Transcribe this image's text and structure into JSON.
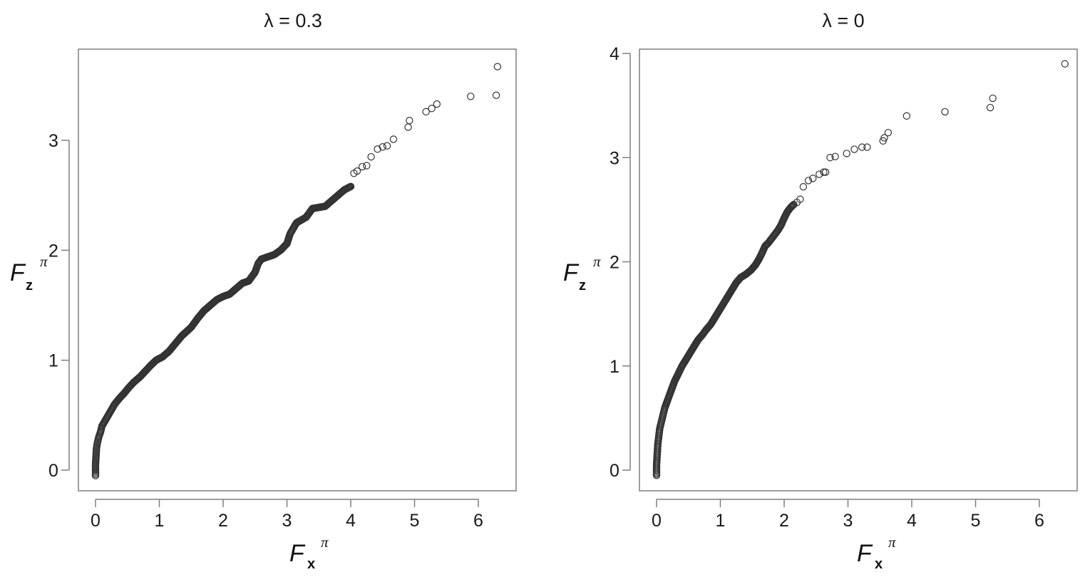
{
  "chart_data": [
    {
      "type": "scatter",
      "title": "λ = 0.3",
      "xlabel": {
        "main": "F",
        "sub": "x",
        "sup": "π"
      },
      "ylabel": {
        "main": "F",
        "sub": "z",
        "sup": "π"
      },
      "xlim": [
        -0.25,
        6.55
      ],
      "ylim": [
        -0.18,
        3.82
      ],
      "xticks": [
        0,
        1,
        2,
        3,
        4,
        5,
        6
      ],
      "yticks": [
        0,
        1,
        2,
        3
      ],
      "xtick_labels": [
        "0",
        "1",
        "2",
        "3",
        "4",
        "5",
        "6"
      ],
      "ytick_labels": [
        "0",
        "1",
        "2",
        "3"
      ],
      "grid": false,
      "curve": [
        [
          0.0,
          -0.05
        ],
        [
          0.0,
          0.0
        ],
        [
          0.0,
          0.05
        ],
        [
          0.005,
          0.1
        ],
        [
          0.01,
          0.15
        ],
        [
          0.015,
          0.2
        ],
        [
          0.03,
          0.25
        ],
        [
          0.05,
          0.3
        ],
        [
          0.08,
          0.35
        ],
        [
          0.1,
          0.4
        ],
        [
          0.15,
          0.45
        ],
        [
          0.2,
          0.5
        ],
        [
          0.25,
          0.55
        ],
        [
          0.3,
          0.6
        ],
        [
          0.37,
          0.65
        ],
        [
          0.45,
          0.7
        ],
        [
          0.52,
          0.75
        ],
        [
          0.6,
          0.8
        ],
        [
          0.7,
          0.85
        ],
        [
          0.78,
          0.9
        ],
        [
          0.86,
          0.95
        ],
        [
          0.95,
          1.0
        ],
        [
          1.05,
          1.03
        ],
        [
          1.15,
          1.08
        ],
        [
          1.25,
          1.15
        ],
        [
          1.35,
          1.22
        ],
        [
          1.5,
          1.3
        ],
        [
          1.6,
          1.38
        ],
        [
          1.7,
          1.45
        ],
        [
          1.8,
          1.5
        ],
        [
          1.9,
          1.55
        ],
        [
          2.0,
          1.58
        ],
        [
          2.1,
          1.6
        ],
        [
          2.2,
          1.65
        ],
        [
          2.3,
          1.7
        ],
        [
          2.4,
          1.72
        ],
        [
          2.5,
          1.8
        ],
        [
          2.55,
          1.88
        ],
        [
          2.6,
          1.92
        ],
        [
          2.7,
          1.94
        ],
        [
          2.8,
          1.96
        ],
        [
          2.9,
          2.0
        ],
        [
          3.0,
          2.06
        ],
        [
          3.05,
          2.15
        ],
        [
          3.15,
          2.25
        ],
        [
          3.3,
          2.3
        ],
        [
          3.4,
          2.38
        ],
        [
          3.6,
          2.4
        ],
        [
          3.7,
          2.45
        ],
        [
          3.8,
          2.5
        ],
        [
          3.9,
          2.55
        ],
        [
          4.0,
          2.58
        ]
      ],
      "points": [
        [
          4.05,
          2.7
        ],
        [
          4.1,
          2.72
        ],
        [
          4.18,
          2.76
        ],
        [
          4.25,
          2.77
        ],
        [
          4.32,
          2.85
        ],
        [
          4.42,
          2.92
        ],
        [
          4.5,
          2.94
        ],
        [
          4.57,
          2.95
        ],
        [
          4.67,
          3.01
        ],
        [
          4.9,
          3.12
        ],
        [
          4.92,
          3.18
        ],
        [
          5.18,
          3.26
        ],
        [
          5.27,
          3.29
        ],
        [
          5.35,
          3.33
        ],
        [
          5.88,
          3.4
        ],
        [
          6.28,
          3.41
        ],
        [
          6.3,
          3.67
        ]
      ]
    },
    {
      "type": "scatter",
      "title": "λ = 0",
      "xlabel": {
        "main": "F",
        "sub": "x",
        "sup": "π"
      },
      "ylabel": {
        "main": "F",
        "sub": "z",
        "sup": "π"
      },
      "xlim": [
        -0.25,
        6.55
      ],
      "ylim": [
        -0.1,
        4.05
      ],
      "xticks": [
        0,
        1,
        2,
        3,
        4,
        5,
        6
      ],
      "yticks": [
        0,
        1,
        2,
        3,
        4
      ],
      "xtick_labels": [
        "0",
        "1",
        "2",
        "3",
        "4",
        "5",
        "6"
      ],
      "ytick_labels": [
        "0",
        "1",
        "2",
        "3",
        "4"
      ],
      "grid": false,
      "curve": [
        [
          0.0,
          -0.05
        ],
        [
          0.0,
          0.0
        ],
        [
          0.0,
          0.05
        ],
        [
          0.005,
          0.1
        ],
        [
          0.01,
          0.15
        ],
        [
          0.015,
          0.2
        ],
        [
          0.02,
          0.25
        ],
        [
          0.03,
          0.3
        ],
        [
          0.04,
          0.35
        ],
        [
          0.05,
          0.4
        ],
        [
          0.07,
          0.45
        ],
        [
          0.09,
          0.5
        ],
        [
          0.11,
          0.55
        ],
        [
          0.13,
          0.6
        ],
        [
          0.16,
          0.65
        ],
        [
          0.19,
          0.7
        ],
        [
          0.22,
          0.75
        ],
        [
          0.25,
          0.8
        ],
        [
          0.28,
          0.85
        ],
        [
          0.32,
          0.9
        ],
        [
          0.36,
          0.95
        ],
        [
          0.4,
          1.0
        ],
        [
          0.45,
          1.05
        ],
        [
          0.5,
          1.1
        ],
        [
          0.55,
          1.15
        ],
        [
          0.6,
          1.2
        ],
        [
          0.65,
          1.25
        ],
        [
          0.72,
          1.3
        ],
        [
          0.78,
          1.35
        ],
        [
          0.85,
          1.4
        ],
        [
          0.9,
          1.45
        ],
        [
          0.95,
          1.5
        ],
        [
          1.0,
          1.55
        ],
        [
          1.05,
          1.6
        ],
        [
          1.1,
          1.65
        ],
        [
          1.15,
          1.7
        ],
        [
          1.2,
          1.75
        ],
        [
          1.25,
          1.8
        ],
        [
          1.32,
          1.85
        ],
        [
          1.4,
          1.88
        ],
        [
          1.48,
          1.92
        ],
        [
          1.55,
          1.97
        ],
        [
          1.6,
          2.02
        ],
        [
          1.65,
          2.08
        ],
        [
          1.7,
          2.15
        ],
        [
          1.75,
          2.18
        ],
        [
          1.8,
          2.22
        ],
        [
          1.85,
          2.26
        ],
        [
          1.9,
          2.3
        ],
        [
          1.95,
          2.35
        ],
        [
          2.0,
          2.42
        ],
        [
          2.05,
          2.48
        ],
        [
          2.1,
          2.52
        ],
        [
          2.15,
          2.55
        ]
      ],
      "points": [
        [
          2.2,
          2.57
        ],
        [
          2.25,
          2.6
        ],
        [
          2.3,
          2.72
        ],
        [
          2.38,
          2.78
        ],
        [
          2.45,
          2.8
        ],
        [
          2.55,
          2.84
        ],
        [
          2.62,
          2.86
        ],
        [
          2.65,
          2.86
        ],
        [
          2.72,
          3.0
        ],
        [
          2.8,
          3.01
        ],
        [
          2.98,
          3.04
        ],
        [
          3.1,
          3.08
        ],
        [
          3.22,
          3.1
        ],
        [
          3.3,
          3.1
        ],
        [
          3.55,
          3.16
        ],
        [
          3.57,
          3.19
        ],
        [
          3.63,
          3.24
        ],
        [
          3.92,
          3.4
        ],
        [
          4.52,
          3.44
        ],
        [
          5.23,
          3.48
        ],
        [
          5.27,
          3.57
        ],
        [
          6.4,
          3.9
        ]
      ]
    }
  ]
}
